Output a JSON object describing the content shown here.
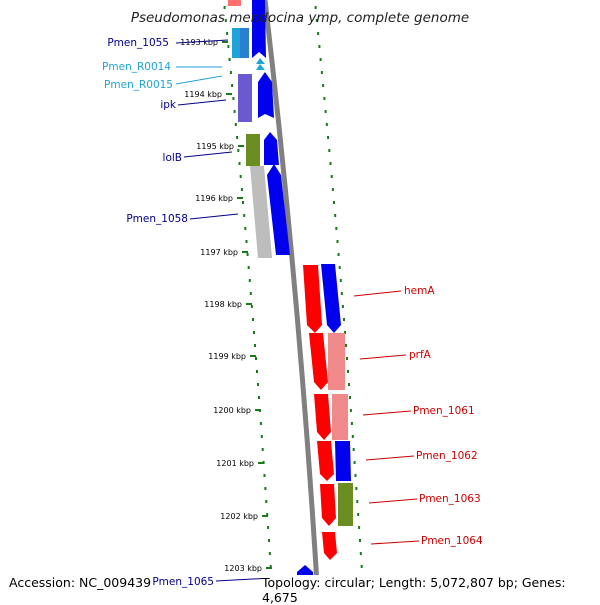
{
  "title": "Pseudomonas mendocina ymp, complete genome",
  "footer": {
    "accession": "Accession: NC_009439",
    "summary": "Topology: circular; Length: 5,072,807 bp; Genes: 4,675"
  },
  "colors": {
    "blue": "#0000ee",
    "red": "#ff0000",
    "pink": "#f08a8a",
    "olive": "#6b8e23",
    "gray": "#bdbdbd",
    "purple": "#6a5acd",
    "cyan": "#1fa3d8",
    "tick": "#1a7a1a",
    "backbone": "#808080"
  },
  "ticks": [
    {
      "label": "1193 kbp"
    },
    {
      "label": "1194 kbp"
    },
    {
      "label": "1195 kbp"
    },
    {
      "label": "1196 kbp"
    },
    {
      "label": "1197 kbp"
    },
    {
      "label": "1198 kbp"
    },
    {
      "label": "1199 kbp"
    },
    {
      "label": "1200 kbp"
    },
    {
      "label": "1201 kbp"
    },
    {
      "label": "1202 kbp"
    },
    {
      "label": "1203 kbp"
    }
  ],
  "genes_left": [
    {
      "name": "Pmen_1055",
      "color": "#00008b"
    },
    {
      "name": "Pmen_R0014",
      "color": "#1fa3d8"
    },
    {
      "name": "Pmen_R0015",
      "color": "#1fa3d8"
    },
    {
      "name": "ipk",
      "color": "#00008b"
    },
    {
      "name": "lolB",
      "color": "#00008b"
    },
    {
      "name": "Pmen_1058",
      "color": "#00008b"
    },
    {
      "name": "Pmen_1065",
      "color": "#00008b"
    }
  ],
  "genes_right": [
    {
      "name": "hemA",
      "color": "#cc0000"
    },
    {
      "name": "prfA",
      "color": "#cc0000"
    },
    {
      "name": "Pmen_1061",
      "color": "#cc0000"
    },
    {
      "name": "Pmen_1062",
      "color": "#cc0000"
    },
    {
      "name": "Pmen_1063",
      "color": "#cc0000"
    },
    {
      "name": "Pmen_1064",
      "color": "#cc0000"
    }
  ]
}
